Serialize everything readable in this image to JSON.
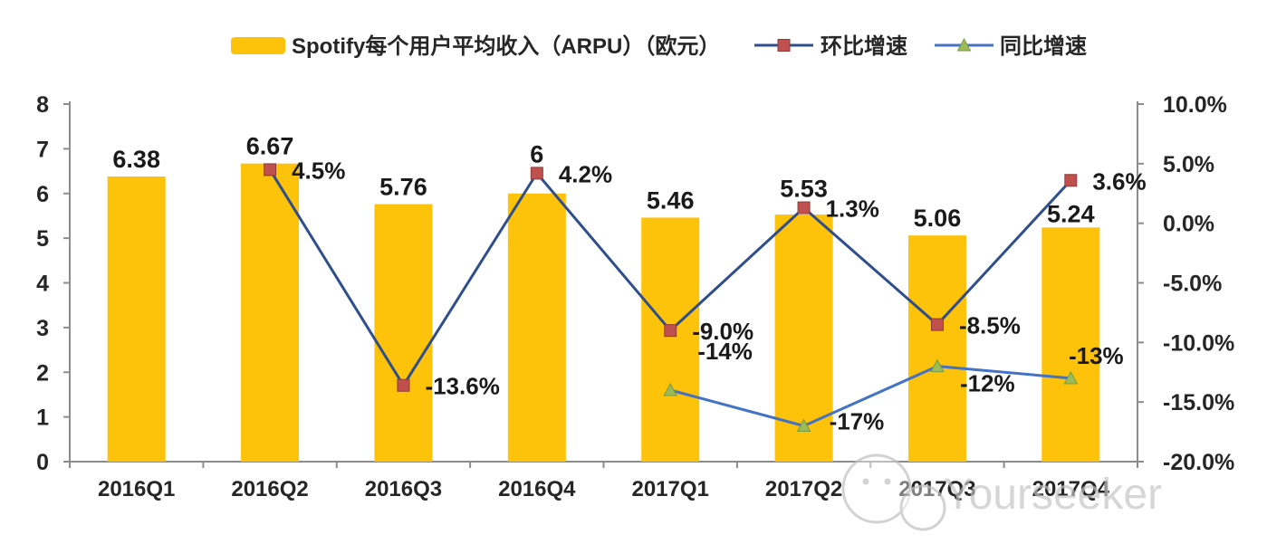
{
  "watermark": {
    "text": "Yourseeker",
    "icon": "wechat-chat-bubbles-icon",
    "color": "#c4c4c4"
  },
  "chart_data": {
    "type": "combo-bar-line",
    "categories": [
      "2016Q1",
      "2016Q2",
      "2016Q3",
      "2016Q4",
      "2017Q1",
      "2017Q2",
      "2017Q3",
      "2017Q4"
    ],
    "series": [
      {
        "name": "Spotify每个用户平均收入（ARPU）（欧元）",
        "type": "bar",
        "axis": "left",
        "color": "#FDC20A",
        "values": [
          6.38,
          6.67,
          5.76,
          6,
          5.46,
          5.53,
          5.06,
          5.24
        ],
        "labels": [
          "6.38",
          "6.67",
          "5.76",
          "6",
          "5.46",
          "5.53",
          "5.06",
          "5.24"
        ]
      },
      {
        "name": "环比增速",
        "type": "line",
        "axis": "right",
        "color": "#2F4E8C",
        "marker": "square",
        "marker_color": "#C0504D",
        "values": [
          null,
          4.5,
          -13.6,
          4.2,
          -9.0,
          1.3,
          -8.5,
          3.6
        ],
        "labels": [
          null,
          "4.5%",
          "-13.6%",
          "4.2%",
          "-9.0%",
          "1.3%",
          "-8.5%",
          "3.6%"
        ]
      },
      {
        "name": "同比增速",
        "type": "line",
        "axis": "right",
        "color": "#4472C4",
        "marker": "triangle",
        "marker_color": "#9BBB59",
        "values": [
          null,
          null,
          null,
          null,
          -14,
          -17,
          -12,
          -13
        ],
        "labels": [
          null,
          null,
          null,
          null,
          "-14%",
          "-17%",
          "-12%",
          "-13%"
        ]
      }
    ],
    "left_axis": {
      "min": 0,
      "max": 8,
      "tick_labels": [
        "8",
        "7",
        "6",
        "5",
        "4",
        "3",
        "2",
        "1",
        "0"
      ]
    },
    "right_axis": {
      "min": -20,
      "max": 10,
      "tick_labels": [
        "10.0%",
        "5.0%",
        "0.0%",
        "-5.0%",
        "-10.0%",
        "-15.0%",
        "-20.0%"
      ]
    },
    "legend_position": "top",
    "grid": false,
    "text_color": "#262626",
    "axis_color": "#8c8c8c"
  }
}
